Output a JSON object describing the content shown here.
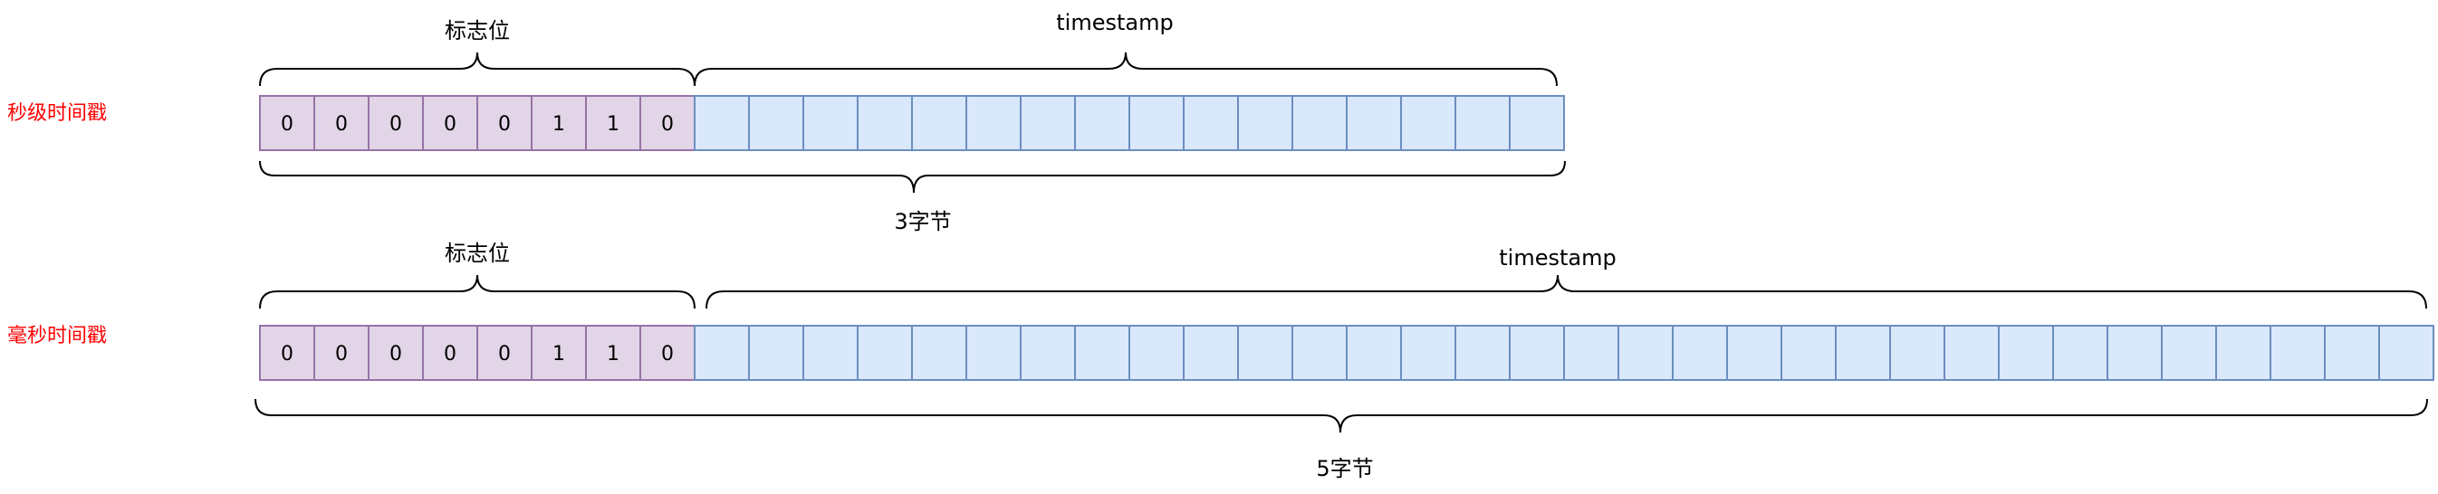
{
  "colors": {
    "flag_fill": "#e1d5e7",
    "flag_stroke": "#9673a6",
    "ts_fill": "#dae8fc",
    "ts_stroke": "#6c8ebf",
    "row_label": "#ff0000",
    "brace": "#000000"
  },
  "rows": [
    {
      "label": "秒级时间戳",
      "flag_label": "标志位",
      "ts_label": "timestamp",
      "size_label": "3字节",
      "flag_bits": [
        "0",
        "0",
        "0",
        "0",
        "0",
        "1",
        "1",
        "0"
      ],
      "ts_cells": 16
    },
    {
      "label": "毫秒时间戳",
      "flag_label": "标志位",
      "ts_label": "timestamp",
      "size_label": "5字节",
      "flag_bits": [
        "0",
        "0",
        "0",
        "0",
        "0",
        "1",
        "1",
        "0"
      ],
      "ts_cells": 32
    }
  ]
}
